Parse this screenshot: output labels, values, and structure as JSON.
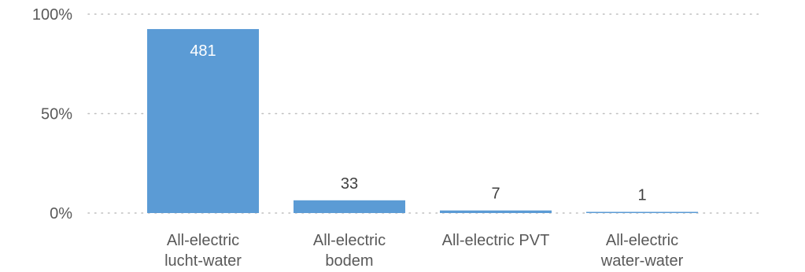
{
  "chart_data": {
    "type": "bar",
    "categories": [
      [
        "All-electric",
        "lucht-water"
      ],
      [
        "All-electric",
        "bodem"
      ],
      [
        "All-electric PVT"
      ],
      [
        "All-electric",
        "water-water"
      ]
    ],
    "values": [
      481,
      33,
      7,
      1
    ],
    "value_unit": "count",
    "y_axis": {
      "scale": "percent of maximum axis (0-100%)",
      "ylim_percent": [
        0,
        100
      ],
      "ticks": [
        {
          "value": 0,
          "label": "0%"
        },
        {
          "value": 50,
          "label": "50%"
        },
        {
          "value": 100,
          "label": "100%"
        }
      ]
    },
    "bar_percent_of_axis": [
      92.5,
      6.4,
      1.3,
      0.2
    ],
    "title": "",
    "xlabel": "",
    "ylabel": "",
    "grid": true,
    "legend": "none",
    "colors": {
      "bar": "#5b9bd5",
      "grid": "#bfbfbf",
      "text": "#595959",
      "label_inside": "#ffffff",
      "label_outside": "#404040"
    }
  }
}
